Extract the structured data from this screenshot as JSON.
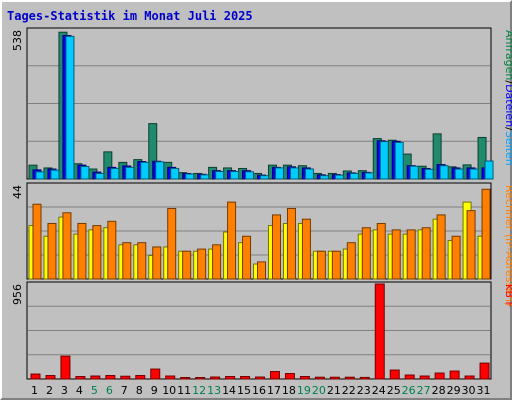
{
  "title": "Tages-Statistik im Monat Juli 2025",
  "chart_data": [
    {
      "type": "bar",
      "panel": "top",
      "ymax_label": "538",
      "ylim": [
        0,
        538
      ],
      "right_label": {
        "parts": [
          {
            "text": "Anfragen",
            "color": "#008040"
          },
          {
            "text": "/",
            "color": "#000000"
          },
          {
            "text": "Dateien",
            "color": "#0000ff"
          },
          {
            "text": "/",
            "color": "#000000"
          },
          {
            "text": "Seiten",
            "color": "#00a0ff"
          }
        ]
      },
      "series": [
        {
          "name": "Anfragen",
          "color": "#1f8a6c",
          "values": [
            50,
            40,
            530,
            55,
            36,
            98,
            60,
            70,
            200,
            60,
            23,
            20,
            42,
            40,
            38,
            20,
            50,
            50,
            48,
            20,
            20,
            29,
            30,
            146,
            140,
            90,
            46,
            163,
            44,
            51,
            150
          ]
        },
        {
          "name": "Dateien",
          "color": "#0000ff",
          "values": [
            33,
            36,
            518,
            50,
            25,
            42,
            47,
            63,
            64,
            42,
            20,
            17,
            30,
            30,
            30,
            14,
            42,
            44,
            40,
            15,
            16,
            22,
            24,
            138,
            136,
            48,
            38,
            52,
            40,
            40,
            40
          ]
        },
        {
          "name": "Seiten",
          "color": "#00ccff",
          "values": [
            26,
            32,
            515,
            45,
            20,
            38,
            42,
            60,
            62,
            38,
            18,
            15,
            27,
            27,
            26,
            12,
            40,
            40,
            36,
            12,
            14,
            20,
            22,
            135,
            132,
            46,
            35,
            48,
            36,
            36,
            65
          ]
        }
      ]
    },
    {
      "type": "bar",
      "panel": "middle",
      "ymax_label": "44",
      "ylim": [
        0,
        44
      ],
      "right_label": {
        "parts": [
          {
            "text": "Rechner (IP-Adressen)",
            "color": "#ff8000"
          }
        ]
      },
      "series": [
        {
          "name": "Rechner",
          "color": "#ffff00",
          "values": [
            25,
            20,
            29,
            21,
            23,
            24,
            16,
            16,
            11,
            15,
            13,
            13,
            14,
            22,
            17,
            7,
            25,
            26,
            26,
            13,
            13,
            14,
            21,
            23,
            21,
            21,
            23,
            28,
            18,
            36,
            20
          ]
        },
        {
          "name": "Rechner (IP-Adressen)",
          "color": "#ff8000",
          "values": [
            35,
            26,
            31,
            26,
            25,
            27,
            17,
            17,
            15,
            33,
            13,
            14,
            16,
            36,
            20,
            8,
            30,
            33,
            28,
            13,
            13,
            17,
            24,
            26,
            23,
            23,
            24,
            30,
            20,
            32,
            42
          ]
        }
      ]
    },
    {
      "type": "bar",
      "panel": "bottom",
      "ymax_label": "956",
      "ylim": [
        0,
        956
      ],
      "right_label": {
        "parts": [
          {
            "text": "kB F",
            "color": "#ff0000"
          }
        ]
      },
      "series": [
        {
          "name": "kB F",
          "color": "#ff0000",
          "values": [
            50,
            35,
            230,
            25,
            30,
            35,
            28,
            35,
            100,
            30,
            15,
            15,
            20,
            25,
            25,
            20,
            75,
            55,
            25,
            18,
            18,
            18,
            16,
            956,
            90,
            40,
            30,
            60,
            80,
            30,
            160
          ]
        }
      ]
    }
  ],
  "x_categories": [
    "1",
    "2",
    "3",
    "4",
    "5",
    "6",
    "7",
    "8",
    "9",
    "10",
    "11",
    "12",
    "13",
    "14",
    "15",
    "16",
    "17",
    "18",
    "19",
    "20",
    "21",
    "22",
    "23",
    "24",
    "25",
    "26",
    "27",
    "28",
    "29",
    "30",
    "31"
  ],
  "weekend_days": [
    "5",
    "6",
    "12",
    "13",
    "19",
    "20",
    "26",
    "27"
  ],
  "weekend_color": "#00804c",
  "weekday_color": "#000000"
}
